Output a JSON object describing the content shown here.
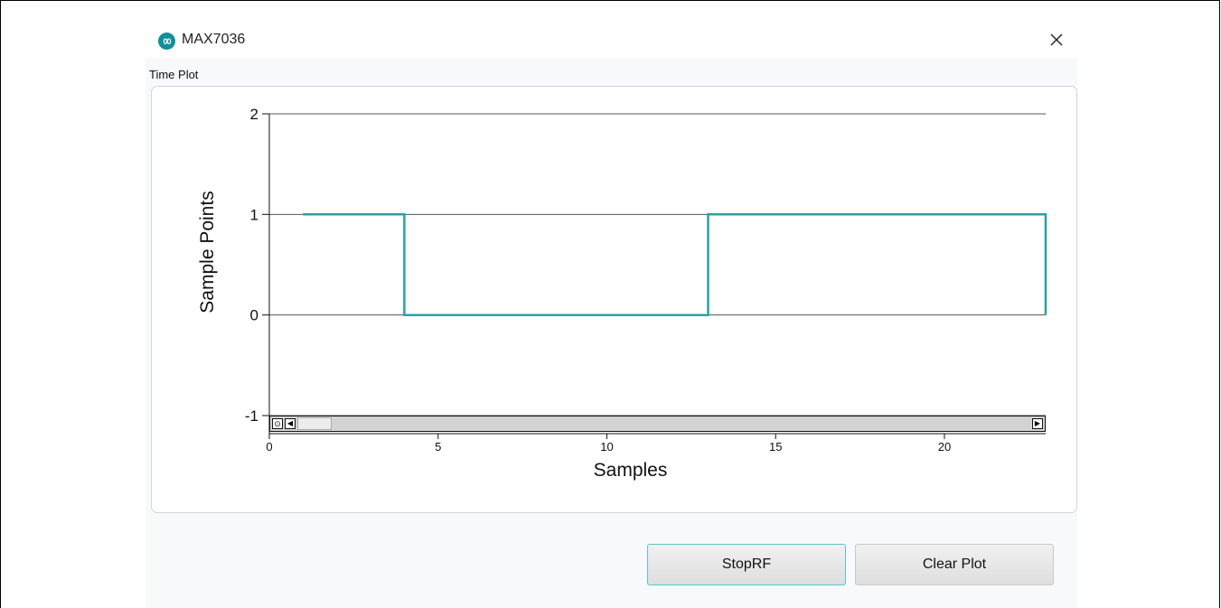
{
  "window": {
    "title": "MAX7036",
    "icon": "maxim-logo-icon",
    "close_icon": "close-icon",
    "accent_color": "#138e9c"
  },
  "section_label": "Time Plot",
  "buttons": {
    "stop_rf": "StopRF",
    "clear_plot": "Clear Plot"
  },
  "chart_data": {
    "type": "line",
    "step": true,
    "xlabel": "Samples",
    "ylabel": "Sample Points",
    "xlim": [
      0,
      23
    ],
    "ylim": [
      -1,
      2
    ],
    "x_ticks": [
      0,
      5,
      10,
      15,
      20
    ],
    "y_ticks": [
      2,
      1,
      0,
      -1
    ],
    "grid": "horizontal",
    "series": [
      {
        "color": "#27a3a3",
        "points": [
          [
            1,
            1
          ],
          [
            4,
            1
          ],
          [
            4,
            0
          ],
          [
            13,
            0
          ],
          [
            13,
            1
          ],
          [
            23,
            1
          ],
          [
            23,
            0
          ]
        ]
      }
    ],
    "scrollbar": "visible"
  }
}
